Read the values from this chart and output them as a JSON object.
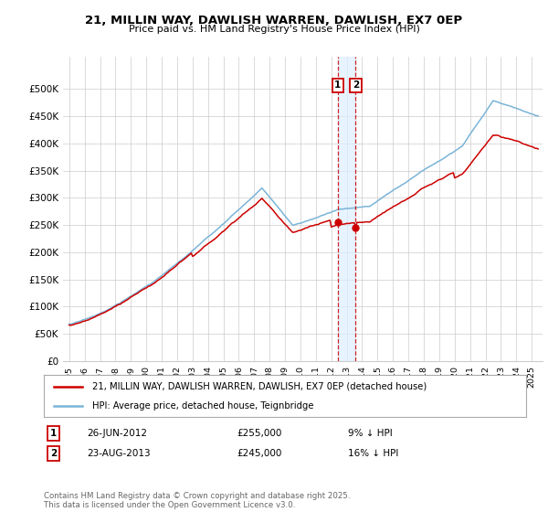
{
  "title": "21, MILLIN WAY, DAWLISH WARREN, DAWLISH, EX7 0EP",
  "subtitle": "Price paid vs. HM Land Registry's House Price Index (HPI)",
  "ylim": [
    0,
    560000
  ],
  "yticks": [
    0,
    50000,
    100000,
    150000,
    200000,
    250000,
    300000,
    350000,
    400000,
    450000,
    500000
  ],
  "ytick_labels": [
    "£0",
    "£50K",
    "£100K",
    "£150K",
    "£200K",
    "£250K",
    "£300K",
    "£350K",
    "£400K",
    "£450K",
    "£500K"
  ],
  "hpi_color": "#7ab4d8",
  "price_color": "#cc0000",
  "background_color": "#ffffff",
  "grid_color": "#cccccc",
  "shade_color": "#ddeeff",
  "legend_line1": "21, MILLIN WAY, DAWLISH WARREN, DAWLISH, EX7 0EP (detached house)",
  "legend_line2": "HPI: Average price, detached house, Teignbridge",
  "footer": "Contains HM Land Registry data © Crown copyright and database right 2025.\nThis data is licensed under the Open Government Licence v3.0."
}
